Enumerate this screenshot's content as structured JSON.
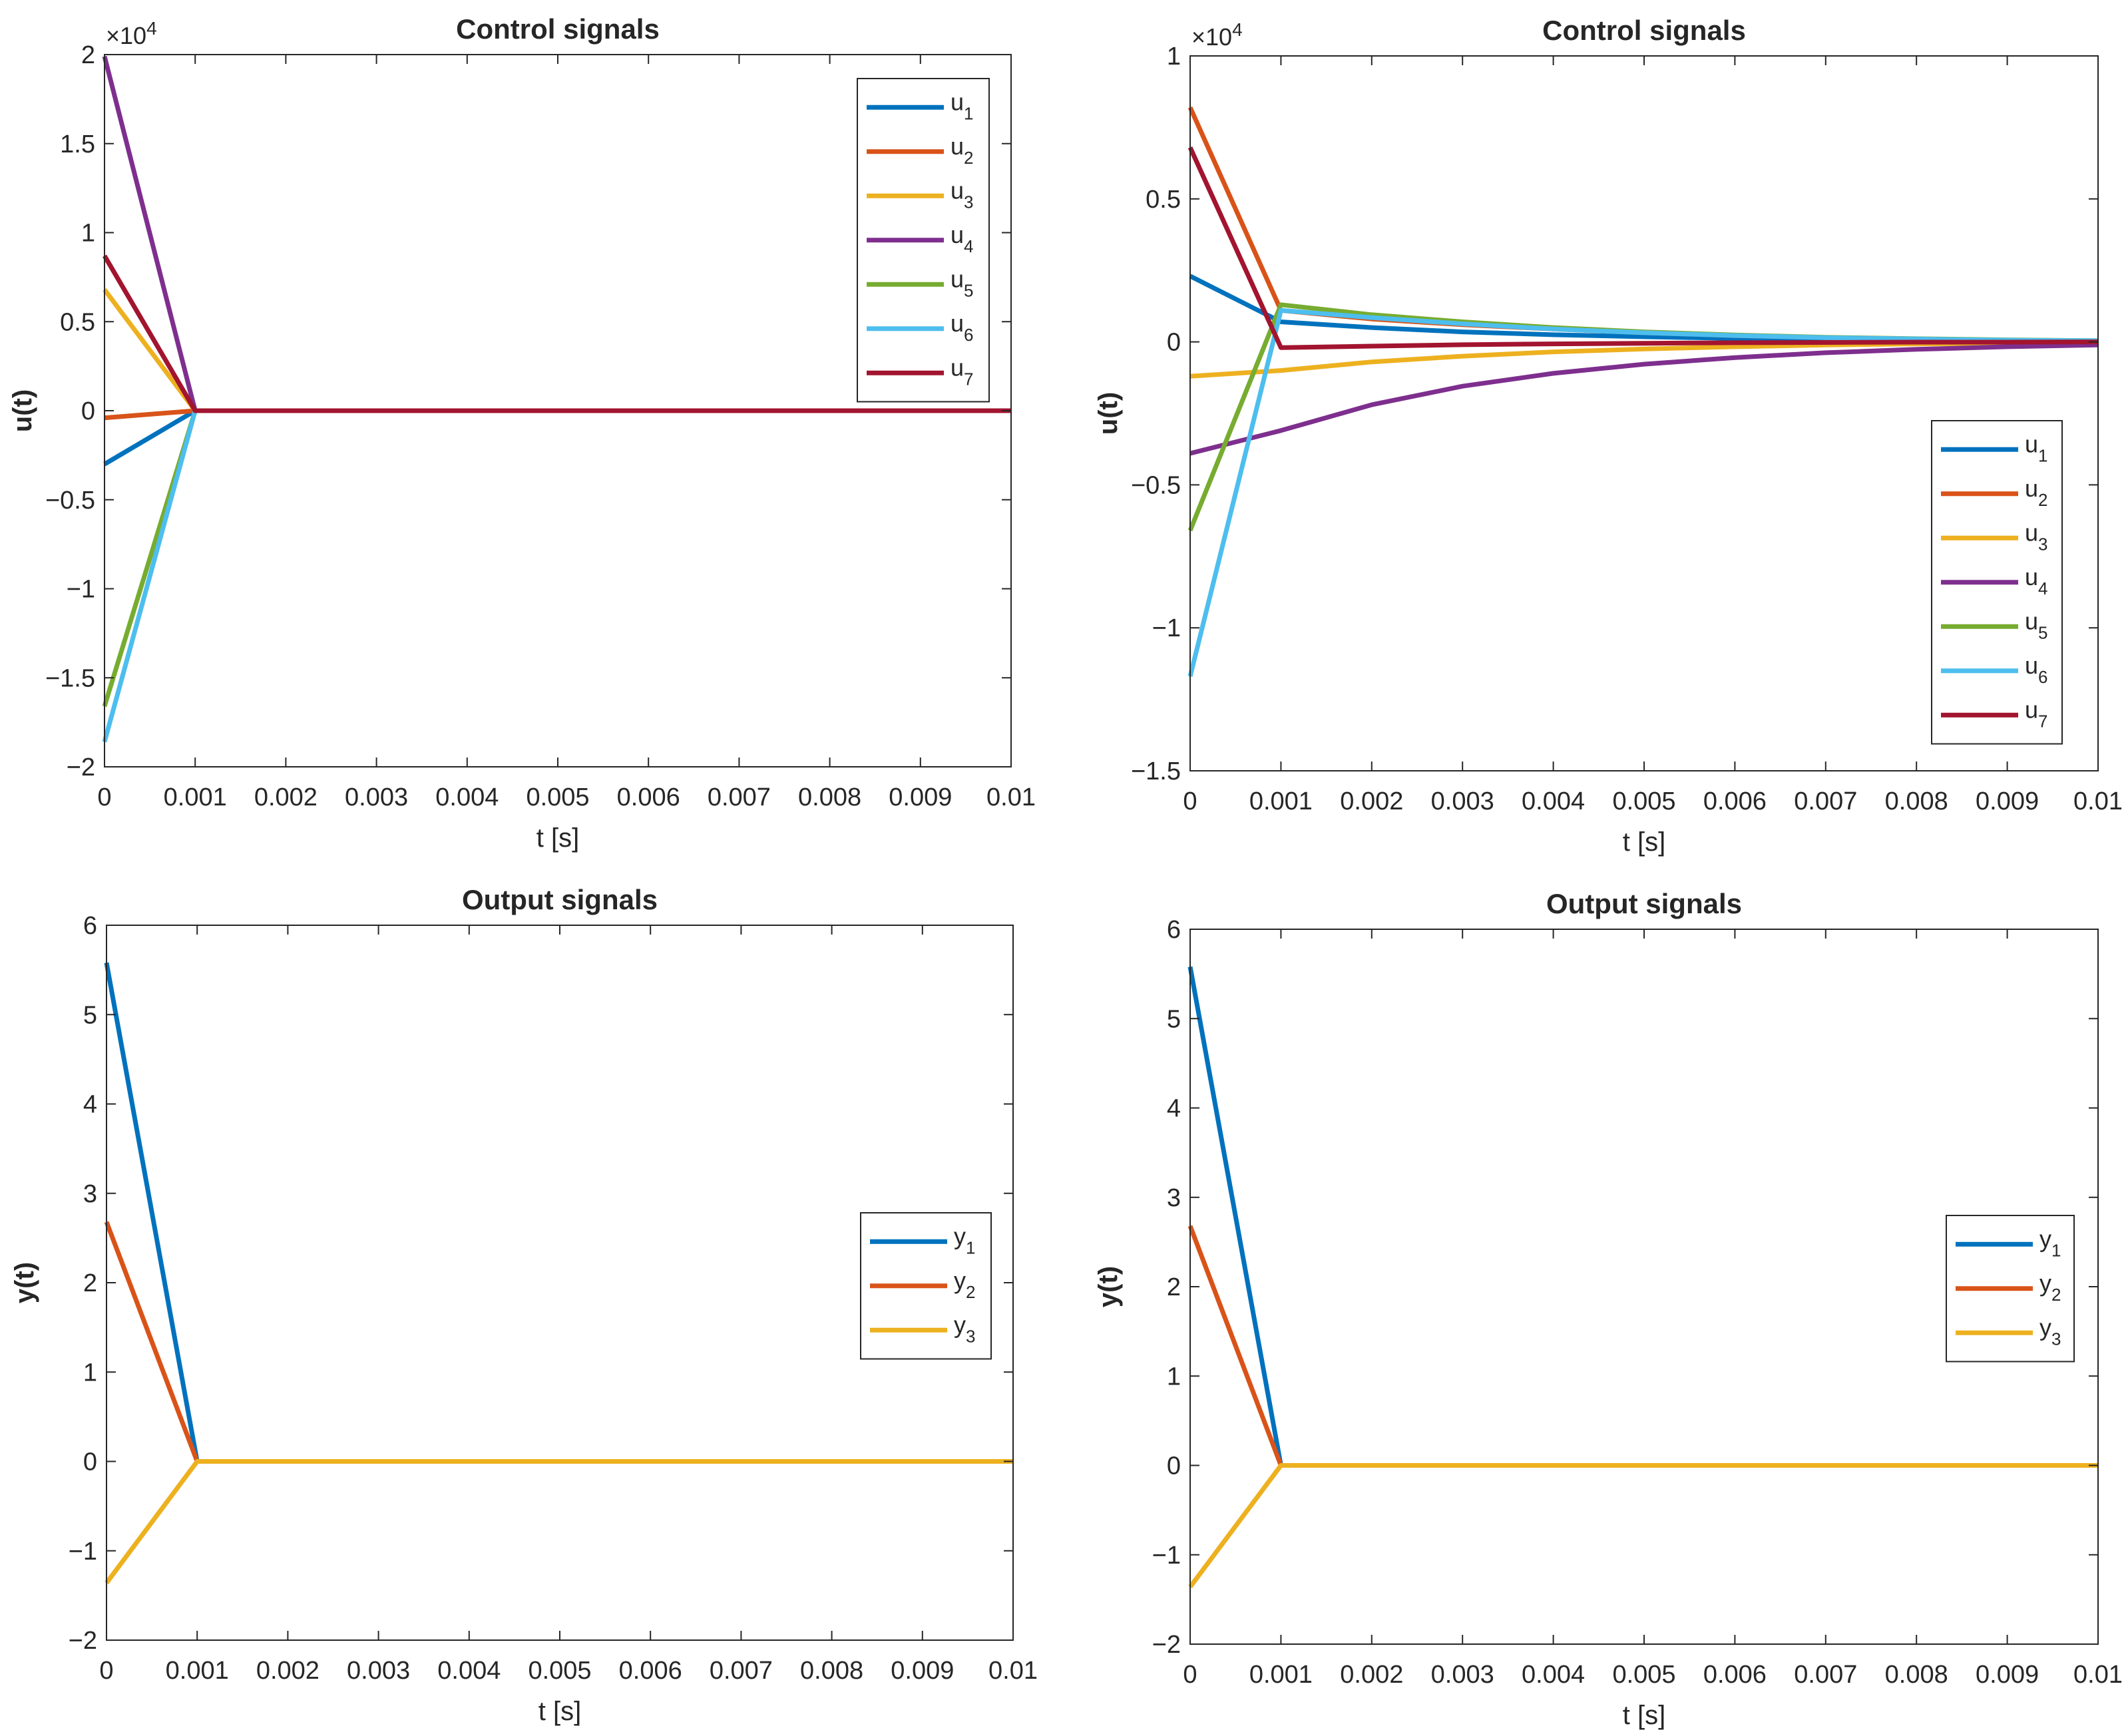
{
  "colors": {
    "series": [
      "#0072BD",
      "#D95319",
      "#EDB120",
      "#7E2F8E",
      "#77AC30",
      "#4DBEEE",
      "#A2142F"
    ],
    "axes": "#262626",
    "background": "#ffffff"
  },
  "chart_data": [
    {
      "type": "line",
      "title": "Control signals",
      "xlabel": "t [s]",
      "ylabel": "u(t)",
      "exponent_label": "×10",
      "exponent_power": "4",
      "xlim": [
        0,
        0.01
      ],
      "ylim": [
        -2,
        2
      ],
      "xticks": [
        0,
        0.001,
        0.002,
        0.003,
        0.004,
        0.005,
        0.006,
        0.007,
        0.008,
        0.009,
        0.01
      ],
      "xtick_labels": [
        "0",
        "0.001",
        "0.002",
        "0.003",
        "0.004",
        "0.005",
        "0.006",
        "0.007",
        "0.008",
        "0.009",
        "0.01"
      ],
      "yticks": [
        -2,
        -1.5,
        -1,
        -0.5,
        0,
        0.5,
        1,
        1.5,
        2
      ],
      "ytick_labels": [
        "−2",
        "−1.5",
        "−1",
        "−0.5",
        "0",
        "0.5",
        "1",
        "1.5",
        "2"
      ],
      "legend_position": "top-right",
      "x": [
        0,
        0.001,
        0.002,
        0.003,
        0.004,
        0.005,
        0.006,
        0.007,
        0.008,
        0.009,
        0.01
      ],
      "series": [
        {
          "name": "u",
          "sub": "1",
          "values": [
            -0.3,
            0,
            0,
            0,
            0,
            0,
            0,
            0,
            0,
            0,
            0
          ]
        },
        {
          "name": "u",
          "sub": "2",
          "values": [
            -0.04,
            0,
            0,
            0,
            0,
            0,
            0,
            0,
            0,
            0,
            0
          ]
        },
        {
          "name": "u",
          "sub": "3",
          "values": [
            0.68,
            0,
            0,
            0,
            0,
            0,
            0,
            0,
            0,
            0,
            0
          ]
        },
        {
          "name": "u",
          "sub": "4",
          "values": [
            1.99,
            0,
            0,
            0,
            0,
            0,
            0,
            0,
            0,
            0,
            0
          ]
        },
        {
          "name": "u",
          "sub": "5",
          "values": [
            -1.66,
            0,
            0,
            0,
            0,
            0,
            0,
            0,
            0,
            0,
            0
          ]
        },
        {
          "name": "u",
          "sub": "6",
          "values": [
            -1.86,
            0,
            0,
            0,
            0,
            0,
            0,
            0,
            0,
            0,
            0
          ]
        },
        {
          "name": "u",
          "sub": "7",
          "values": [
            0.87,
            0,
            0,
            0,
            0,
            0,
            0,
            0,
            0,
            0,
            0
          ]
        }
      ]
    },
    {
      "type": "line",
      "title": "Control signals",
      "xlabel": "t [s]",
      "ylabel": "u(t)",
      "exponent_label": "×10",
      "exponent_power": "4",
      "xlim": [
        0,
        0.01
      ],
      "ylim": [
        -1.5,
        1
      ],
      "xticks": [
        0,
        0.001,
        0.002,
        0.003,
        0.004,
        0.005,
        0.006,
        0.007,
        0.008,
        0.009,
        0.01
      ],
      "xtick_labels": [
        "0",
        "0.001",
        "0.002",
        "0.003",
        "0.004",
        "0.005",
        "0.006",
        "0.007",
        "0.008",
        "0.009",
        "0.01"
      ],
      "yticks": [
        -1.5,
        -1,
        -0.5,
        0,
        0.5,
        1
      ],
      "ytick_labels": [
        "−1.5",
        "−1",
        "−0.5",
        "0",
        "0.5",
        "1"
      ],
      "legend_position": "bottom-right",
      "x": [
        0,
        0.001,
        0.002,
        0.003,
        0.004,
        0.005,
        0.006,
        0.007,
        0.008,
        0.009,
        0.01
      ],
      "series": [
        {
          "name": "u",
          "sub": "1",
          "values": [
            0.23,
            0.07,
            0.05,
            0.035,
            0.025,
            0.018,
            0.012,
            0.008,
            0.005,
            0.003,
            0.002
          ]
        },
        {
          "name": "u",
          "sub": "2",
          "values": [
            0.82,
            0.11,
            0.08,
            0.06,
            0.045,
            0.032,
            0.022,
            0.015,
            0.01,
            0.006,
            0.004
          ]
        },
        {
          "name": "u",
          "sub": "3",
          "values": [
            -0.12,
            -0.1,
            -0.07,
            -0.05,
            -0.035,
            -0.025,
            -0.017,
            -0.011,
            -0.007,
            -0.005,
            -0.003
          ]
        },
        {
          "name": "u",
          "sub": "4",
          "values": [
            -0.39,
            -0.31,
            -0.22,
            -0.155,
            -0.11,
            -0.078,
            -0.055,
            -0.038,
            -0.026,
            -0.017,
            -0.011
          ]
        },
        {
          "name": "u",
          "sub": "5",
          "values": [
            -0.66,
            0.13,
            0.095,
            0.07,
            0.05,
            0.035,
            0.024,
            0.016,
            0.011,
            0.007,
            0.004
          ]
        },
        {
          "name": "u",
          "sub": "6",
          "values": [
            -1.17,
            0.11,
            0.085,
            0.063,
            0.045,
            0.032,
            0.022,
            0.015,
            0.01,
            0.006,
            0.004
          ]
        },
        {
          "name": "u",
          "sub": "7",
          "values": [
            0.68,
            -0.02,
            -0.015,
            -0.01,
            -0.007,
            -0.005,
            -0.003,
            -0.002,
            -0.001,
            -0.001,
            0
          ]
        }
      ]
    },
    {
      "type": "line",
      "title": "Output signals",
      "xlabel": "t [s]",
      "ylabel": "y(t)",
      "xlim": [
        0,
        0.01
      ],
      "ylim": [
        -2,
        6
      ],
      "xticks": [
        0,
        0.001,
        0.002,
        0.003,
        0.004,
        0.005,
        0.006,
        0.007,
        0.008,
        0.009,
        0.01
      ],
      "xtick_labels": [
        "0",
        "0.001",
        "0.002",
        "0.003",
        "0.004",
        "0.005",
        "0.006",
        "0.007",
        "0.008",
        "0.009",
        "0.01"
      ],
      "yticks": [
        -2,
        -1,
        0,
        1,
        2,
        3,
        4,
        5,
        6
      ],
      "ytick_labels": [
        "−2",
        "−1",
        "0",
        "1",
        "2",
        "3",
        "4",
        "5",
        "6"
      ],
      "legend_position": "right",
      "x": [
        0,
        0.001,
        0.002,
        0.003,
        0.004,
        0.005,
        0.006,
        0.007,
        0.008,
        0.009,
        0.01
      ],
      "series": [
        {
          "name": "y",
          "sub": "1",
          "values": [
            5.58,
            0,
            0,
            0,
            0,
            0,
            0,
            0,
            0,
            0,
            0
          ]
        },
        {
          "name": "y",
          "sub": "2",
          "values": [
            2.68,
            0,
            0,
            0,
            0,
            0,
            0,
            0,
            0,
            0,
            0
          ]
        },
        {
          "name": "y",
          "sub": "3",
          "values": [
            -1.36,
            0,
            0,
            0,
            0,
            0,
            0,
            0,
            0,
            0,
            0
          ]
        }
      ]
    },
    {
      "type": "line",
      "title": "Output signals",
      "xlabel": "t [s]",
      "ylabel": "y(t)",
      "xlim": [
        0,
        0.01
      ],
      "ylim": [
        -2,
        6
      ],
      "xticks": [
        0,
        0.001,
        0.002,
        0.003,
        0.004,
        0.005,
        0.006,
        0.007,
        0.008,
        0.009,
        0.01
      ],
      "xtick_labels": [
        "0",
        "0.001",
        "0.002",
        "0.003",
        "0.004",
        "0.005",
        "0.006",
        "0.007",
        "0.008",
        "0.009",
        "0.01"
      ],
      "yticks": [
        -2,
        -1,
        0,
        1,
        2,
        3,
        4,
        5,
        6
      ],
      "ytick_labels": [
        "−2",
        "−1",
        "0",
        "1",
        "2",
        "3",
        "4",
        "5",
        "6"
      ],
      "legend_position": "right",
      "x": [
        0,
        0.001,
        0.002,
        0.003,
        0.004,
        0.005,
        0.006,
        0.007,
        0.008,
        0.009,
        0.01
      ],
      "series": [
        {
          "name": "y",
          "sub": "1",
          "values": [
            5.58,
            0,
            0,
            0,
            0,
            0,
            0,
            0,
            0,
            0,
            0
          ]
        },
        {
          "name": "y",
          "sub": "2",
          "values": [
            2.68,
            0,
            0,
            0,
            0,
            0,
            0,
            0,
            0,
            0,
            0
          ]
        },
        {
          "name": "y",
          "sub": "3",
          "values": [
            -1.36,
            0,
            0,
            0,
            0,
            0,
            0,
            0,
            0,
            0,
            0
          ]
        }
      ]
    }
  ]
}
